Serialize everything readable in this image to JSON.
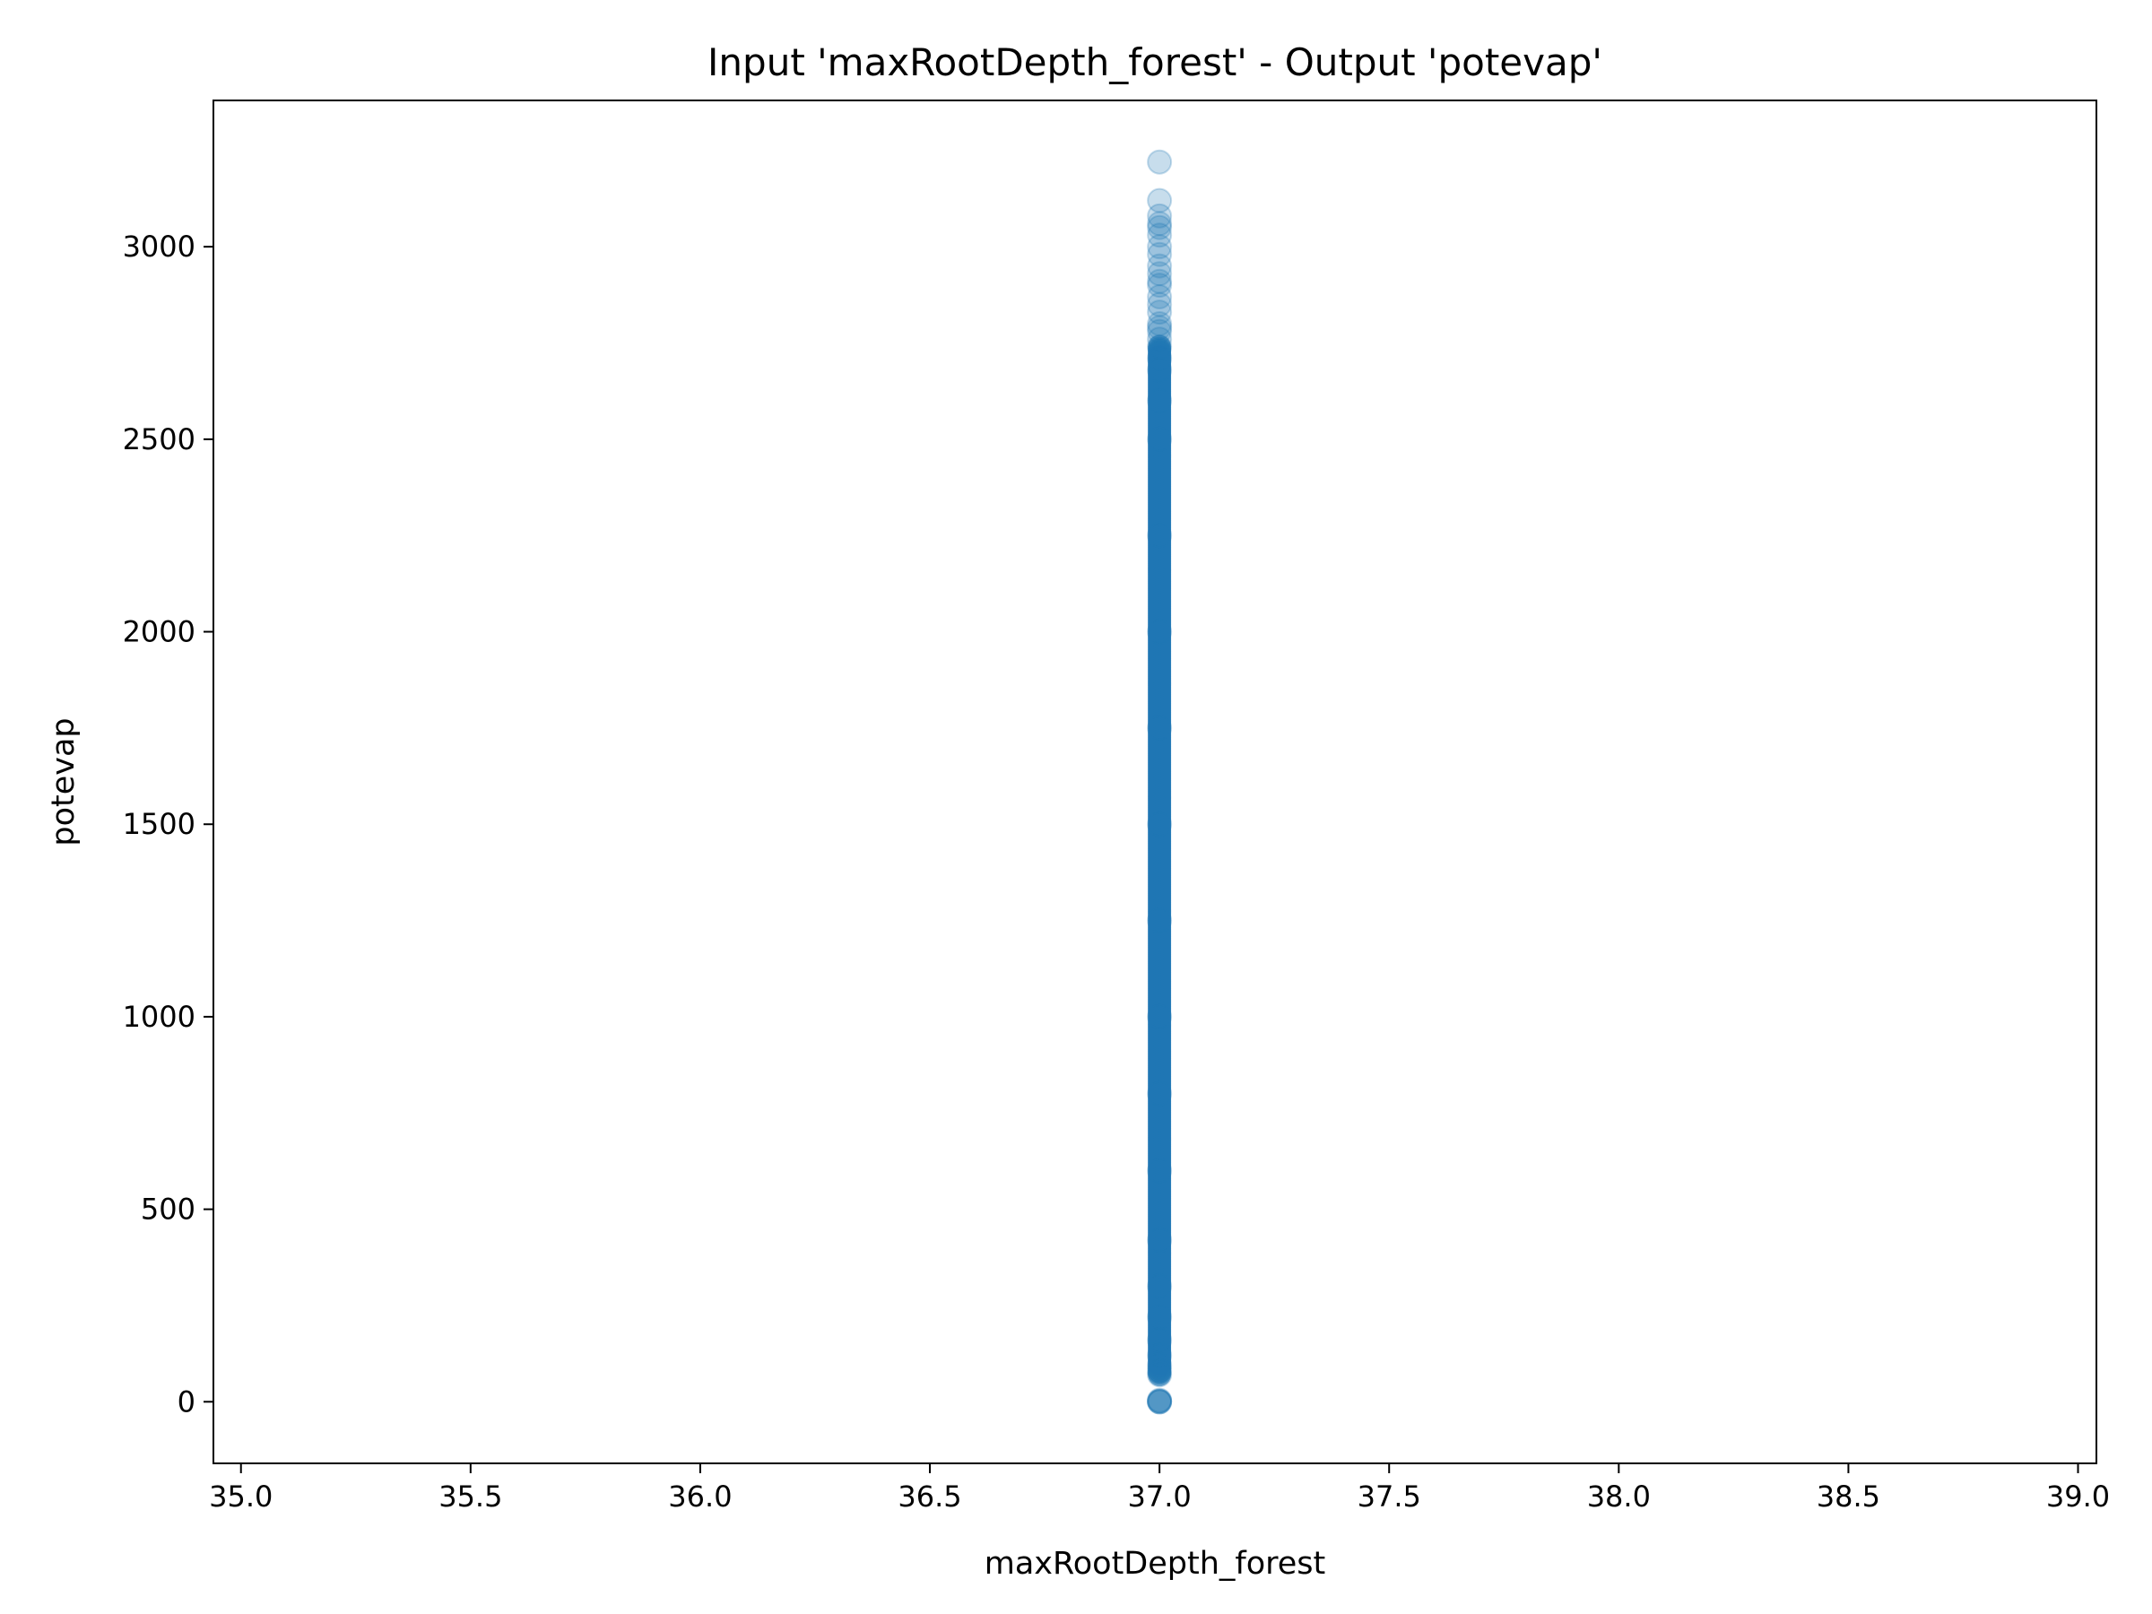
{
  "chart_data": {
    "type": "scatter",
    "title": "Input 'maxRootDepth_forest' - Output 'potevap'",
    "xlabel": "maxRootDepth_forest",
    "ylabel": "potevap",
    "xlim": [
      34.94,
      39.04
    ],
    "ylim": [
      -160,
      3380
    ],
    "xticks": [
      35.0,
      35.5,
      36.0,
      36.5,
      37.0,
      37.5,
      38.0,
      38.5,
      39.0
    ],
    "xtick_labels": [
      "35.0",
      "35.5",
      "36.0",
      "36.5",
      "37.0",
      "37.5",
      "38.0",
      "38.5",
      "39.0"
    ],
    "yticks": [
      0,
      500,
      1000,
      1500,
      2000,
      2500,
      3000
    ],
    "ytick_labels": [
      "0",
      "500",
      "1000",
      "1500",
      "2000",
      "2500",
      "3000"
    ],
    "grid": false,
    "marker_color": "#1f77b4",
    "marker_alpha": 0.25,
    "series": [
      {
        "x_constant": 37.0,
        "dense_range": [
          70,
          2740
        ],
        "y": [
          0,
          0,
          0,
          2,
          4,
          70,
          80,
          95,
          120,
          160,
          220,
          300,
          420,
          600,
          800,
          1000,
          1250,
          1500,
          1750,
          2000,
          2250,
          2500,
          2600,
          2680,
          2710,
          2740,
          2760,
          2780,
          2790,
          2800,
          2830,
          2850,
          2870,
          2900,
          2910,
          2930,
          2950,
          2980,
          3000,
          3030,
          3050,
          3060,
          3080,
          3120,
          3220
        ]
      }
    ]
  }
}
